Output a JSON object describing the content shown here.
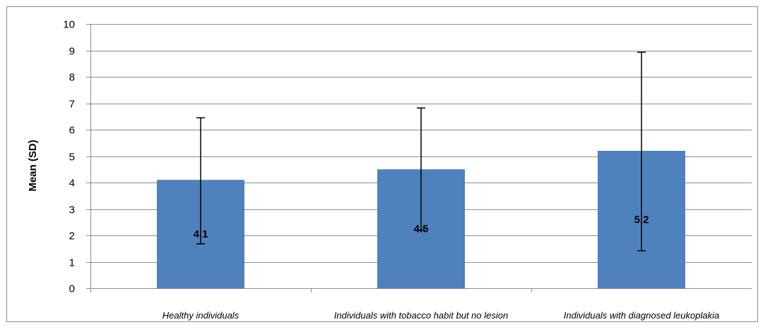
{
  "chart_data": {
    "type": "bar",
    "title": "",
    "xlabel": "",
    "ylabel": "Mean (SD)",
    "ylim": [
      0,
      10
    ],
    "yticks": [
      0,
      1,
      2,
      3,
      4,
      5,
      6,
      7,
      8,
      9,
      10
    ],
    "grid": true,
    "legend": "none",
    "categories": [
      "Healthy individuals",
      "Individuals with tobacco habit but no lesion",
      "Individuals with diagnosed leukoplakia"
    ],
    "values": [
      4.1,
      4.5,
      5.2
    ],
    "data_labels": [
      "4.1",
      "4.5",
      "5.2"
    ],
    "error_bars": {
      "upper": [
        6.45,
        6.82,
        8.93
      ],
      "lower": [
        1.68,
        2.2,
        1.42
      ]
    },
    "colors": {
      "bar": "#4f81bd",
      "grid": "#8c8c8c",
      "axis": "#8c8c8c",
      "error": "#000000"
    }
  }
}
